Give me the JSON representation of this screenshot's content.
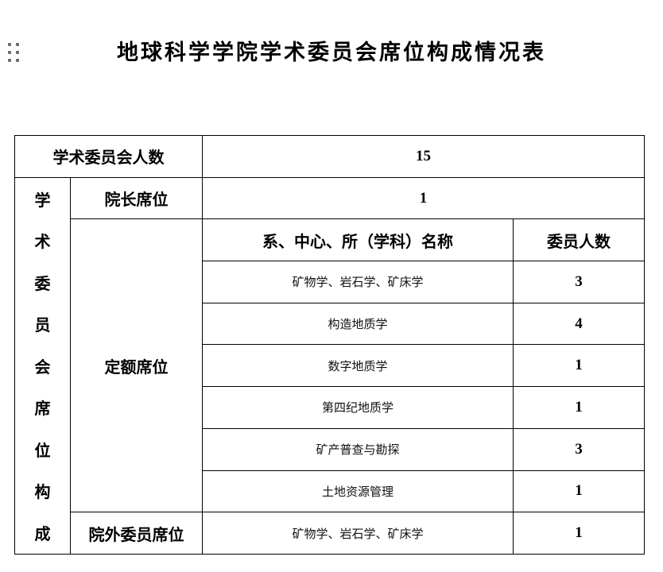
{
  "page": {
    "title": "地球科学学院学术委员会席位构成情况表"
  },
  "table": {
    "total_row": {
      "label": "学术委员会人数",
      "value": "15"
    },
    "vertical_header": {
      "text": "学术委员会席位构成",
      "chars": [
        "学",
        "术",
        "委",
        "员",
        "会",
        "席",
        "位",
        "构",
        "成"
      ]
    },
    "dean_row": {
      "label": "院长席位",
      "value": "1"
    },
    "quota": {
      "label": "定额席位",
      "columns": {
        "name": "系、中心、所（学科）名称",
        "count": "委员人数"
      },
      "rows": [
        {
          "name": "矿物学、岩石学、矿床学",
          "count": "3"
        },
        {
          "name": "构造地质学",
          "count": "4"
        },
        {
          "name": "数字地质学",
          "count": "1"
        },
        {
          "name": "第四纪地质学",
          "count": "1"
        },
        {
          "name": "矿产普查与勘探",
          "count": "3"
        },
        {
          "name": "土地资源管理",
          "count": "1"
        }
      ]
    },
    "external_row": {
      "label": "院外委员席位",
      "name": "矿物学、岩石学、矿床学",
      "value": "1"
    }
  },
  "colors": {
    "text": "#000000",
    "border": "#000000",
    "drag_handle": "#6b6b6b",
    "background": "#ffffff"
  }
}
